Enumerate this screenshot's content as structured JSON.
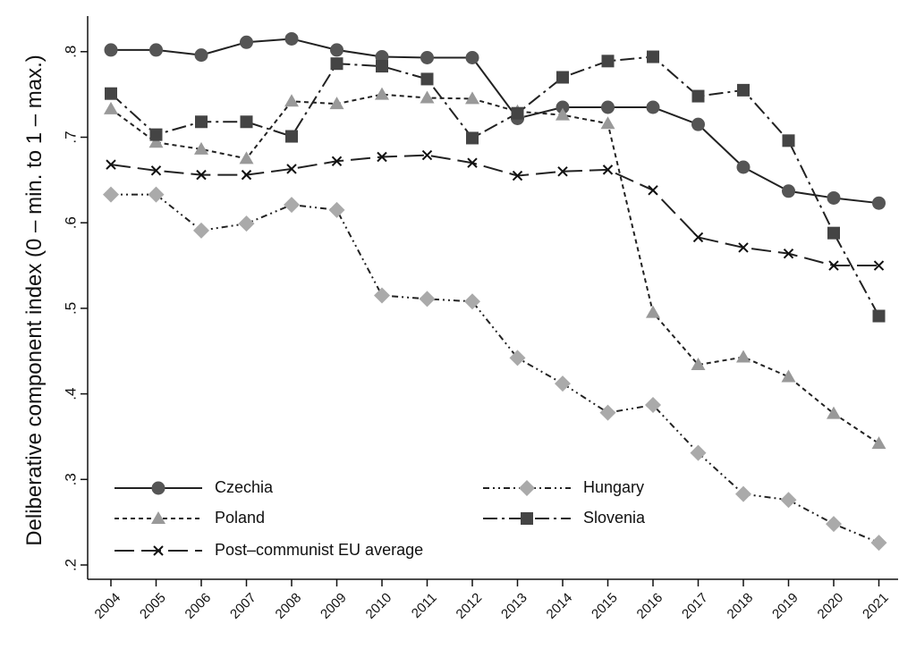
{
  "chart_data": {
    "type": "line",
    "title": "",
    "xlabel": "",
    "ylabel": "Deliberative component index (0 – min. to 1 – max.)",
    "x": [
      "2004",
      "2005",
      "2006",
      "2007",
      "2008",
      "2009",
      "2010",
      "2011",
      "2012",
      "2013",
      "2014",
      "2015",
      "2016",
      "2017",
      "2018",
      "2019",
      "2020",
      "2021"
    ],
    "ylim": [
      0.2,
      0.83
    ],
    "yticks": [
      0.2,
      0.3,
      0.4,
      0.5,
      0.6,
      0.7,
      0.8
    ],
    "ytick_labels": [
      ".2",
      ".3",
      ".4",
      ".5",
      ".6",
      ".7",
      ".8"
    ],
    "grid": false,
    "legend_position": "bottom-left inside",
    "series": [
      {
        "name": "Czechia",
        "color": "#555555",
        "marker": "circle",
        "dash": "solid",
        "values": [
          0.802,
          0.802,
          0.796,
          0.811,
          0.815,
          0.802,
          0.794,
          0.793,
          0.793,
          0.722,
          0.735,
          0.735,
          0.735,
          0.715,
          0.665,
          0.637,
          0.629,
          0.623
        ]
      },
      {
        "name": "Hungary",
        "color": "#aaaaaa",
        "marker": "diamond",
        "dash": "dash-dot-dot",
        "values": [
          0.633,
          0.633,
          0.591,
          0.599,
          0.621,
          0.615,
          0.515,
          0.511,
          0.508,
          0.442,
          0.412,
          0.378,
          0.387,
          0.331,
          0.283,
          0.276,
          0.248,
          0.226
        ]
      },
      {
        "name": "Poland",
        "color": "#999999",
        "marker": "triangle",
        "dash": "short-dash",
        "values": [
          0.733,
          0.694,
          0.686,
          0.675,
          0.742,
          0.739,
          0.75,
          0.746,
          0.745,
          0.73,
          0.726,
          0.716,
          0.495,
          0.434,
          0.443,
          0.42,
          0.377,
          0.342
        ]
      },
      {
        "name": "Slovenia",
        "color": "#444444",
        "marker": "square",
        "dash": "long-dash-dot",
        "values": [
          0.751,
          0.703,
          0.718,
          0.718,
          0.701,
          0.786,
          0.783,
          0.768,
          0.699,
          0.728,
          0.77,
          0.789,
          0.794,
          0.748,
          0.755,
          0.696,
          0.588,
          0.491
        ]
      },
      {
        "name": "Post–communist EU average",
        "color": "#111111",
        "marker": "x",
        "dash": "long-dash",
        "values": [
          0.668,
          0.661,
          0.656,
          0.656,
          0.663,
          0.672,
          0.677,
          0.679,
          0.67,
          0.655,
          0.66,
          0.662,
          0.638,
          0.583,
          0.571,
          0.564,
          0.55,
          0.55
        ]
      }
    ]
  }
}
